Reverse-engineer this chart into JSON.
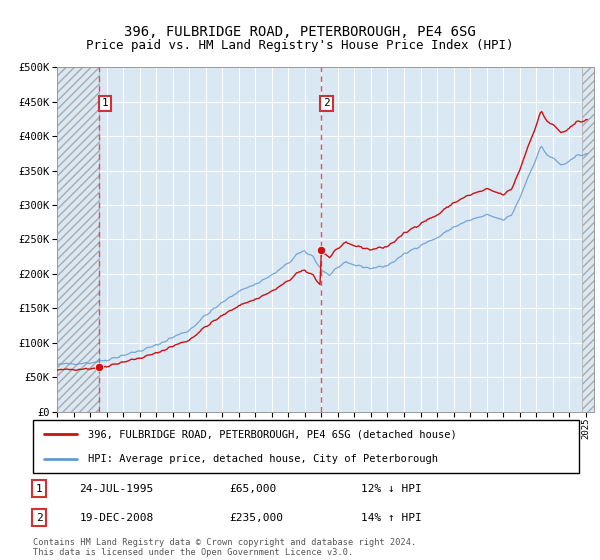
{
  "title": "396, FULBRIDGE ROAD, PETERBOROUGH, PE4 6SG",
  "subtitle": "Price paid vs. HM Land Registry's House Price Index (HPI)",
  "title_fontsize": 10,
  "subtitle_fontsize": 9,
  "sale1_date": "24-JUL-1995",
  "sale1_price": 65000,
  "sale1_year": 1995.556,
  "sale1_hpi_pct": "12% ↓ HPI",
  "sale2_date": "19-DEC-2008",
  "sale2_price": 235000,
  "sale2_year": 2008.958,
  "sale2_hpi_pct": "14% ↑ HPI",
  "xlim_left": 1993.0,
  "xlim_right": 2025.5,
  "ylim_bottom": 0,
  "ylim_top": 500000,
  "background_color": "#dae8f4",
  "hatch_bg_color": "#dae8f4",
  "grid_color": "#ffffff",
  "vline_color": "#dd4444",
  "legend_line1": "396, FULBRIDGE ROAD, PETERBOROUGH, PE4 6SG (detached house)",
  "legend_line2": "HPI: Average price, detached house, City of Peterborough",
  "footer": "Contains HM Land Registry data © Crown copyright and database right 2024.\nThis data is licensed under the Open Government Licence v3.0.",
  "red_line_color": "#cc1111",
  "blue_line_color": "#6699cc"
}
